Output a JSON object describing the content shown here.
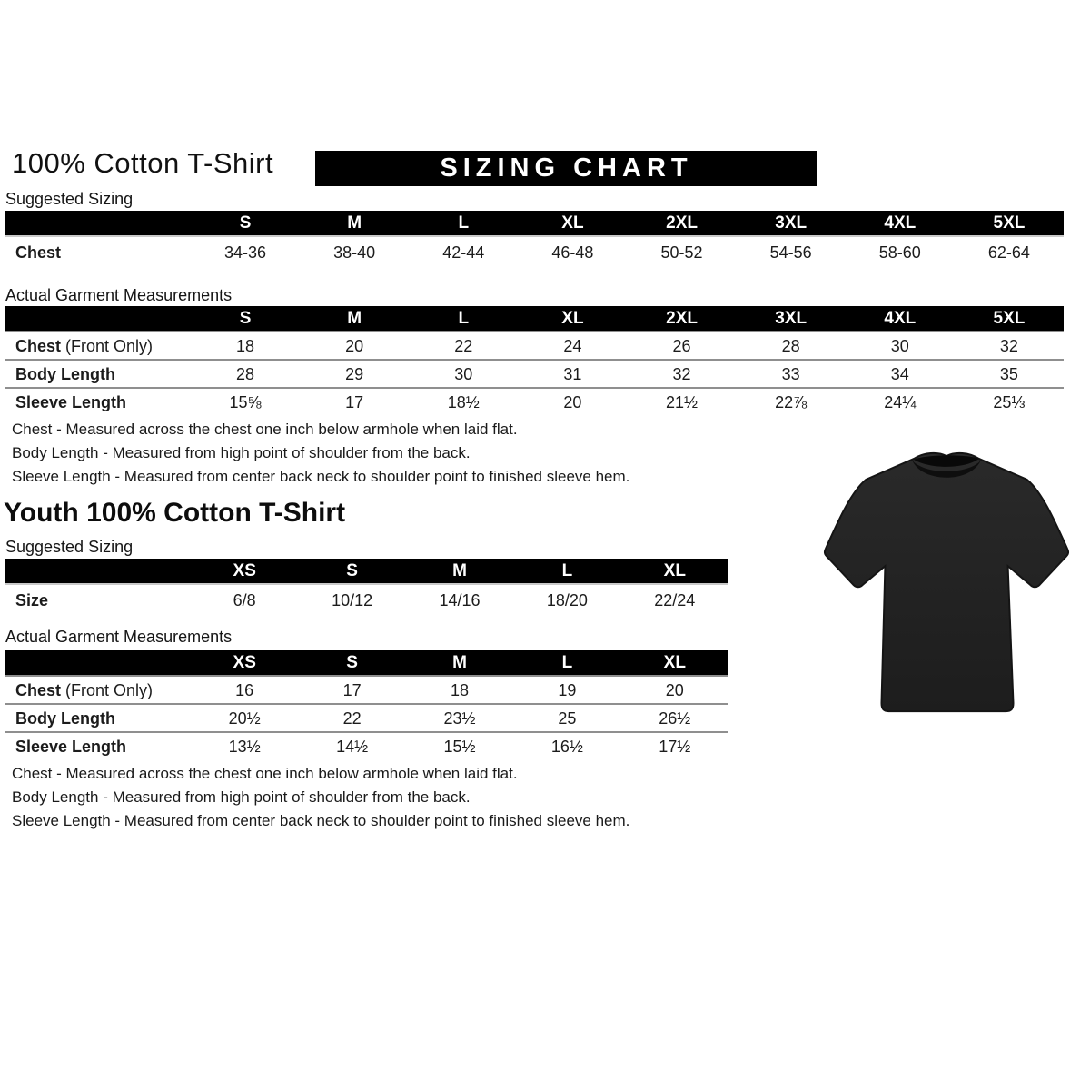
{
  "header": {
    "title": "100% Cotton T-Shirt",
    "banner": "SIZING CHART"
  },
  "adult": {
    "suggested": {
      "label": "Suggested Sizing",
      "columns": [
        "S",
        "M",
        "L",
        "XL",
        "2XL",
        "3XL",
        "4XL",
        "5XL"
      ],
      "rows": [
        {
          "label": "Chest",
          "values": [
            "34-36",
            "38-40",
            "42-44",
            "46-48",
            "50-52",
            "54-56",
            "58-60",
            "62-64"
          ]
        }
      ]
    },
    "actual": {
      "label": "Actual Garment Measurements",
      "columns": [
        "S",
        "M",
        "L",
        "XL",
        "2XL",
        "3XL",
        "4XL",
        "5XL"
      ],
      "rows": [
        {
          "label": "Chest",
          "suffix": "(Front Only)",
          "values": [
            "18",
            "20",
            "22",
            "24",
            "26",
            "28",
            "30",
            "32"
          ]
        },
        {
          "label": "Body Length",
          "values": [
            "28",
            "29",
            "30",
            "31",
            "32",
            "33",
            "34",
            "35"
          ]
        },
        {
          "label": "Sleeve Length",
          "values": [
            "15⅝",
            "17",
            "18½",
            "20",
            "21½",
            "22⅞",
            "24¼",
            "25⅓"
          ]
        }
      ]
    },
    "notes": [
      "Chest - Measured across the chest one inch below armhole when laid flat.",
      "Body Length - Measured from high point of shoulder from the back.",
      "Sleeve Length - Measured from center back neck to shoulder point to finished sleeve hem."
    ]
  },
  "youth": {
    "title": "Youth 100% Cotton T-Shirt",
    "suggested": {
      "label": "Suggested Sizing",
      "columns": [
        "XS",
        "S",
        "M",
        "L",
        "XL"
      ],
      "rows": [
        {
          "label": "Size",
          "values": [
            "6/8",
            "10/12",
            "14/16",
            "18/20",
            "22/24"
          ]
        }
      ]
    },
    "actual": {
      "label": "Actual Garment Measurements",
      "columns": [
        "XS",
        "S",
        "M",
        "L",
        "XL"
      ],
      "rows": [
        {
          "label": "Chest",
          "suffix": "(Front Only)",
          "values": [
            "16",
            "17",
            "18",
            "19",
            "20"
          ]
        },
        {
          "label": "Body Length",
          "values": [
            "20½",
            "22",
            "23½",
            "25",
            "26½"
          ]
        },
        {
          "label": "Sleeve Length",
          "values": [
            "13½",
            "14½",
            "15½",
            "16½",
            "17½"
          ]
        }
      ]
    },
    "notes": [
      "Chest - Measured across the chest one inch below armhole when laid flat.",
      "Body Length - Measured from high point of shoulder from the back.",
      "Sleeve Length - Measured from center back neck to shoulder point to finished sleeve hem."
    ]
  },
  "tshirt": {
    "description": "black short-sleeve crew-neck t-shirt",
    "body_color": "#222222",
    "collar_color": "#0e0e0e"
  },
  "colors": {
    "bar_background": "#000000",
    "bar_text": "#ffffff",
    "rule_line": "#8f8f8f"
  }
}
